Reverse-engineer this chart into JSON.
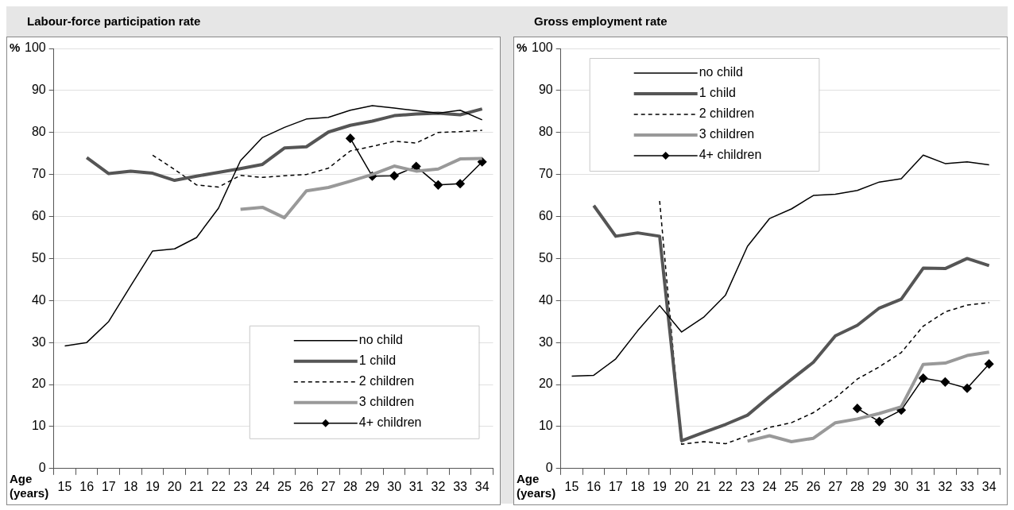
{
  "chart_data": [
    {
      "type": "line",
      "title": "Labour-force participation rate",
      "xlabel": "Age (years)",
      "ylabel": "%",
      "categories": [
        "15",
        "16",
        "17",
        "18",
        "19",
        "20",
        "21",
        "22",
        "23",
        "24",
        "25",
        "26",
        "27",
        "28",
        "29",
        "30",
        "31",
        "32",
        "33",
        "34"
      ],
      "ylim": [
        0,
        100
      ],
      "yticks": [
        0,
        10,
        20,
        30,
        40,
        50,
        60,
        70,
        80,
        90,
        100
      ],
      "grid": "y",
      "legend": "bottom right",
      "series": [
        {
          "name": "no child",
          "color": "#000000",
          "values": [
            29.2,
            30,
            35,
            43.5,
            51.8,
            52.3,
            55,
            62,
            73.3,
            78.8,
            81.2,
            83.2,
            83.6,
            85.3,
            86.4,
            85.8,
            85.2,
            84.6,
            85.3,
            83
          ]
        },
        {
          "name": "1 child",
          "color": "#555555",
          "values": [
            null,
            74,
            70.2,
            70.8,
            70.3,
            68.6,
            69.6,
            70.5,
            71.4,
            72.4,
            76.3,
            76.6,
            80.1,
            81.7,
            82.7,
            84,
            84.4,
            84.6,
            84.2,
            85.6
          ]
        },
        {
          "name": "2 children",
          "color": "#000000",
          "line_style": "dashed",
          "values": [
            null,
            null,
            null,
            null,
            74.6,
            71.2,
            67.5,
            67,
            69.8,
            69.3,
            69.7,
            70,
            71.5,
            75.6,
            76.7,
            77.9,
            77.5,
            80,
            80.2,
            80.5
          ]
        },
        {
          "name": "3 children",
          "color": "#999999",
          "values": [
            null,
            null,
            null,
            null,
            null,
            null,
            null,
            null,
            61.7,
            62.2,
            59.7,
            66.1,
            66.9,
            68.4,
            70,
            72,
            70.8,
            71.3,
            73.7,
            73.8
          ]
        },
        {
          "name": "4+ children",
          "color": "#000000",
          "marker": "diamond",
          "values": [
            null,
            null,
            null,
            null,
            null,
            null,
            null,
            null,
            null,
            null,
            null,
            null,
            null,
            78.6,
            69.6,
            69.7,
            71.9,
            67.5,
            67.8,
            73
          ]
        }
      ]
    },
    {
      "type": "line",
      "title": "Gross employment rate",
      "xlabel": "Age (years)",
      "ylabel": "%",
      "categories": [
        "15",
        "16",
        "17",
        "18",
        "19",
        "20",
        "21",
        "22",
        "23",
        "24",
        "25",
        "26",
        "27",
        "28",
        "29",
        "30",
        "31",
        "32",
        "33",
        "34"
      ],
      "ylim": [
        0,
        100
      ],
      "yticks": [
        0,
        10,
        20,
        30,
        40,
        50,
        60,
        70,
        80,
        90,
        100
      ],
      "grid": "y",
      "legend": "top left",
      "series": [
        {
          "name": "no child",
          "color": "#000000",
          "values": [
            22,
            22.2,
            26.1,
            32.8,
            38.8,
            32.5,
            36,
            41.3,
            52.9,
            59.5,
            61.8,
            65,
            65.3,
            66.2,
            68.2,
            69,
            74.6,
            72.6,
            73,
            72.3
          ]
        },
        {
          "name": "1 child",
          "color": "#555555",
          "values": [
            null,
            62.6,
            55.3,
            56.1,
            55.3,
            6.6,
            8.6,
            10.5,
            12.7,
            17.1,
            21.2,
            25.3,
            31.6,
            34.1,
            38.2,
            40.3,
            47.7,
            47.6,
            50,
            48.3
          ]
        },
        {
          "name": "2 children",
          "color": "#000000",
          "line_style": "dashed",
          "values": [
            null,
            null,
            null,
            null,
            63.7,
            5.8,
            6.4,
            5.9,
            7.8,
            9.8,
            10.9,
            13.3,
            16.8,
            21.3,
            24.2,
            27.6,
            33.9,
            37.3,
            38.9,
            39.5
          ]
        },
        {
          "name": "3 children",
          "color": "#999999",
          "values": [
            null,
            null,
            null,
            null,
            null,
            null,
            null,
            null,
            6.5,
            7.8,
            6.4,
            7.2,
            10.9,
            11.8,
            13.1,
            14.7,
            24.8,
            25.1,
            26.9,
            27.7
          ]
        },
        {
          "name": "4+ children",
          "color": "#000000",
          "marker": "diamond",
          "values": [
            null,
            null,
            null,
            null,
            null,
            null,
            null,
            null,
            null,
            null,
            null,
            null,
            null,
            14.3,
            11.2,
            13.9,
            21.5,
            20.6,
            19.1,
            24.9
          ]
        }
      ]
    }
  ]
}
